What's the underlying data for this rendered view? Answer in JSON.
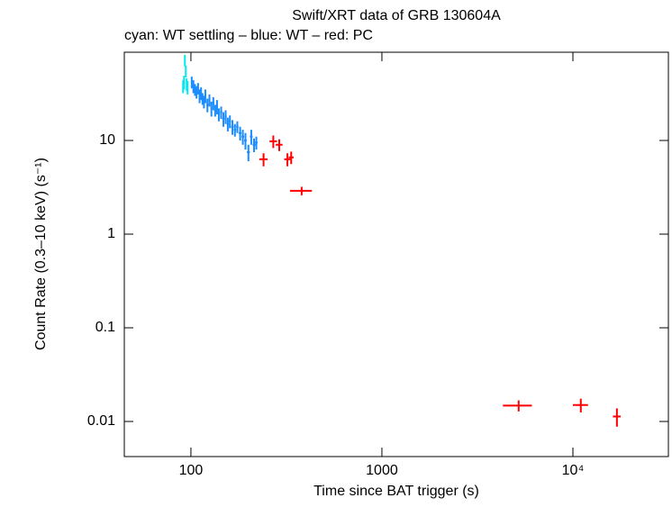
{
  "chart_data": {
    "type": "scatter",
    "title": "Swift/XRT data of GRB 130604A",
    "subtitle": "cyan: WT settling – blue: WT – red: PC",
    "x_label": "Time since BAT trigger (s)",
    "y_label": "Count Rate (0.3–10 keV) (s⁻¹)",
    "x_log": true,
    "y_log": true,
    "xlim": [
      44.8,
      31623
    ],
    "ylim": [
      0.00422,
      87.5
    ],
    "xticks": [
      100,
      1000,
      {
        "value": 10000,
        "label": "10⁴"
      }
    ],
    "yticks": [
      0.01,
      0.1,
      1,
      10
    ],
    "series": [
      {
        "name": "WT settling",
        "color": "#00e8f0",
        "x": [
          91,
          92,
          93,
          94,
          95,
          96
        ],
        "xerr": [
          0.5,
          0.5,
          0.5,
          0.5,
          0.5,
          0.5
        ],
        "values": [
          38,
          42,
          72,
          55,
          40,
          37
        ],
        "yerr": [
          6,
          7,
          10,
          8,
          6,
          6
        ]
      },
      {
        "name": "WT",
        "color": "#1a8cff",
        "x": [
          101,
          103,
          105,
          107,
          109,
          111,
          113,
          115,
          117,
          119,
          122,
          125,
          128,
          131,
          134,
          137,
          140,
          144,
          148,
          152,
          156,
          160,
          165,
          170,
          175,
          181,
          187,
          193,
          200,
          207,
          214,
          220
        ],
        "xerr": [
          1,
          1,
          1,
          1,
          1,
          1,
          1,
          1,
          1,
          1,
          1.5,
          1.5,
          1.5,
          1.5,
          1.5,
          1.5,
          1.5,
          2,
          2,
          2,
          2,
          2,
          2.5,
          2.5,
          2.5,
          3,
          3,
          3,
          3.5,
          3.5,
          3.5,
          3.5
        ],
        "values": [
          42,
          38,
          35,
          33,
          36,
          30,
          32,
          28,
          26,
          30,
          24,
          27,
          22,
          25,
          21,
          23,
          19,
          20,
          17,
          18,
          15,
          16,
          14,
          13,
          14,
          12,
          11,
          10,
          7.5,
          11,
          9,
          9.5
        ],
        "yerr": [
          6,
          6,
          5,
          5,
          5,
          5,
          5,
          4,
          4,
          5,
          4,
          4,
          4,
          4,
          3,
          4,
          3,
          3,
          3,
          3,
          2.5,
          2.5,
          2.5,
          2,
          2,
          2,
          2,
          2,
          1.5,
          2,
          1.5,
          1.5
        ]
      },
      {
        "name": "PC",
        "color": "#ff0000",
        "x": [
          240,
          270,
          290,
          320,
          335,
          380,
          5200,
          11000,
          17000
        ],
        "xerr": [
          12,
          12,
          12,
          12,
          10,
          50,
          900,
          1000,
          800
        ],
        "values": [
          6.3,
          9.8,
          9.0,
          6.3,
          6.6,
          2.9,
          0.0148,
          0.015,
          0.0113
        ],
        "yerr": [
          1.0,
          1.5,
          1.3,
          1.0,
          1.0,
          0.3,
          0.002,
          0.0025,
          0.0025
        ]
      }
    ]
  }
}
